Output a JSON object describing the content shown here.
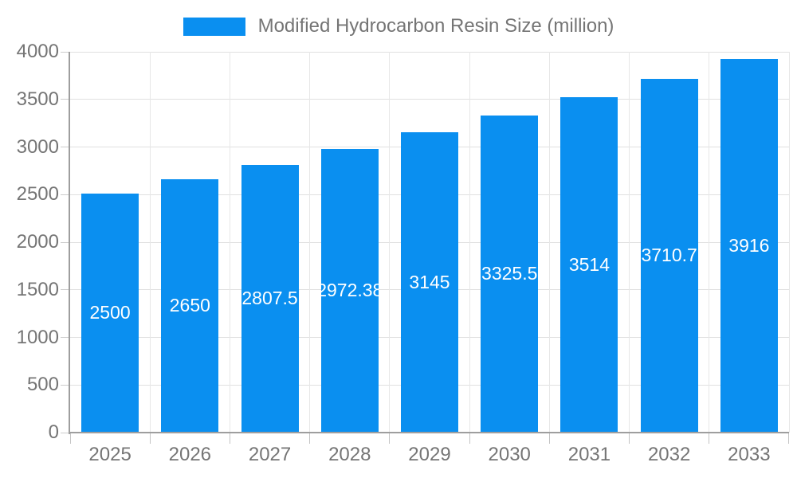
{
  "legend": {
    "label": "Modified Hydrocarbon Resin Size (million)"
  },
  "chart_data": {
    "type": "bar",
    "title": "Modified Hydrocarbon Resin Size (million)",
    "categories": [
      "2025",
      "2026",
      "2027",
      "2028",
      "2029",
      "2030",
      "2031",
      "2032",
      "2033"
    ],
    "values": [
      2500,
      2650,
      2807.5,
      2972.38,
      3145,
      3325.5,
      3514,
      3710.7,
      3916
    ],
    "bar_labels": [
      "2500",
      "2650",
      "2807.5",
      "2972.38",
      "3145",
      "3325.5",
      "3514",
      "3710.7",
      "3916"
    ],
    "xlabel": "",
    "ylabel": "",
    "ylim": [
      0,
      4000
    ],
    "yticks": [
      0,
      500,
      1000,
      1500,
      2000,
      2500,
      3000,
      3500,
      4000
    ],
    "grid": true,
    "legend_position": "top",
    "bar_color": "#0a8ff0",
    "text_color": "#757575",
    "axis_color": "#9e9e9e",
    "grid_color": "#e0e0e0",
    "bar_label_color": "#ffffff"
  }
}
